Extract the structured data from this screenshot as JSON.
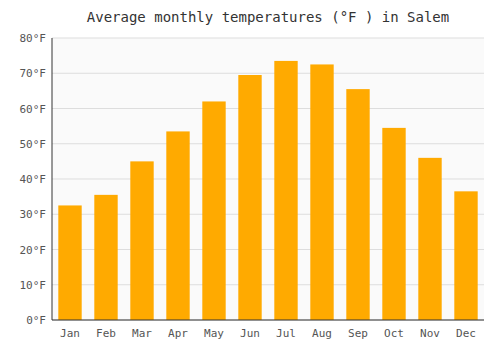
{
  "chart_data": {
    "type": "bar",
    "title": "Average monthly temperatures (°F ) in Salem",
    "categories": [
      "Jan",
      "Feb",
      "Mar",
      "Apr",
      "May",
      "Jun",
      "Jul",
      "Aug",
      "Sep",
      "Oct",
      "Nov",
      "Dec"
    ],
    "values": [
      32.5,
      35.5,
      45.0,
      53.5,
      62.0,
      69.5,
      73.5,
      72.5,
      65.5,
      54.5,
      46.0,
      36.5
    ],
    "color": "#FFAA00",
    "ylim": [
      0,
      80
    ],
    "yticks": [
      {
        "value": 0,
        "label": "0°F"
      },
      {
        "value": 10,
        "label": "10°F"
      },
      {
        "value": 20,
        "label": "20°F"
      },
      {
        "value": 30,
        "label": "30°F"
      },
      {
        "value": 40,
        "label": "40°F"
      },
      {
        "value": 50,
        "label": "50°F"
      },
      {
        "value": 60,
        "label": "60°F"
      },
      {
        "value": 70,
        "label": "70°F"
      },
      {
        "value": 80,
        "label": "80°F"
      }
    ],
    "grid": true
  }
}
